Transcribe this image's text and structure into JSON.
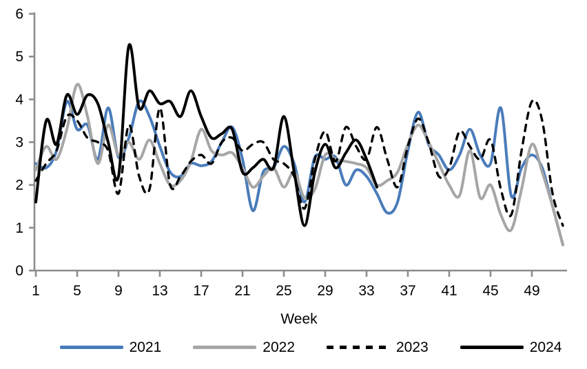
{
  "chart_data": {
    "type": "line",
    "title": "",
    "xlabel": "Week",
    "ylabel": "",
    "ylim": [
      0,
      6
    ],
    "xlim": [
      1,
      52.3
    ],
    "yticks": [
      0,
      1,
      2,
      3,
      4,
      5,
      6
    ],
    "xticks": [
      1,
      5,
      9,
      13,
      17,
      21,
      25,
      29,
      33,
      37,
      41,
      45,
      49
    ],
    "grid": "off",
    "legend_position": "bottom",
    "axis_color": "#8C8C8C",
    "text_color": "#000000",
    "series": [
      {
        "name": "2021",
        "color": "#4A7CBA",
        "style": "solid",
        "values": [
          2.5,
          2.4,
          2.8,
          3.95,
          3.3,
          3.4,
          2.6,
          3.8,
          2.65,
          3.1,
          3.95,
          3.6,
          2.9,
          2.3,
          2.2,
          2.5,
          2.45,
          2.55,
          3.0,
          3.35,
          2.6,
          1.4,
          2.3,
          2.4,
          2.9,
          2.5,
          1.6,
          2.65,
          2.6,
          2.65,
          2.0,
          2.35,
          2.2,
          1.8,
          1.35,
          1.6,
          2.8,
          3.7,
          2.95,
          2.7,
          2.35,
          2.7,
          3.3,
          2.7,
          2.5,
          3.8,
          1.75,
          2.4,
          2.7,
          2.4,
          1.5,
          0.6
        ]
      },
      {
        "name": "2022",
        "color": "#A6A6A6",
        "style": "solid",
        "values": [
          2.35,
          2.9,
          2.6,
          3.3,
          4.35,
          3.6,
          2.5,
          3.4,
          2.7,
          3.0,
          2.6,
          3.05,
          2.5,
          2.0,
          2.1,
          2.55,
          3.3,
          2.8,
          2.7,
          2.75,
          2.4,
          1.95,
          2.2,
          2.4,
          1.95,
          2.3,
          1.7,
          1.9,
          2.7,
          2.6,
          2.55,
          2.5,
          2.4,
          2.0,
          2.1,
          2.3,
          2.95,
          3.4,
          3.0,
          2.5,
          2.0,
          1.75,
          2.8,
          1.7,
          2.0,
          1.3,
          0.95,
          1.9,
          2.95,
          2.3,
          1.5,
          0.6
        ]
      },
      {
        "name": "2023",
        "color": "#000000",
        "style": "dashed",
        "values": [
          2.1,
          2.5,
          2.8,
          3.6,
          3.5,
          3.1,
          3.0,
          2.8,
          1.8,
          3.4,
          2.2,
          1.9,
          3.8,
          2.0,
          2.2,
          2.55,
          2.7,
          2.5,
          3.0,
          3.1,
          2.8,
          2.95,
          3.0,
          2.6,
          2.5,
          2.2,
          1.45,
          2.6,
          3.25,
          2.55,
          3.35,
          2.9,
          2.6,
          3.35,
          2.6,
          1.95,
          2.9,
          3.55,
          3.0,
          2.2,
          2.4,
          3.25,
          2.9,
          2.6,
          3.05,
          1.9,
          1.3,
          2.8,
          3.95,
          3.5,
          1.8,
          1.05
        ]
      },
      {
        "name": "2024",
        "color": "#000000",
        "style": "solid",
        "values": [
          1.6,
          3.5,
          2.95,
          4.1,
          3.65,
          4.1,
          3.9,
          3.0,
          2.2,
          5.25,
          3.8,
          4.2,
          3.9,
          3.95,
          3.6,
          4.2,
          3.6,
          3.1,
          3.2,
          3.3,
          2.3,
          2.4,
          2.6,
          2.4,
          3.6,
          2.3,
          1.05,
          2.3,
          2.95,
          2.4,
          2.75,
          3.05,
          2.6,
          1.95
        ]
      }
    ]
  }
}
